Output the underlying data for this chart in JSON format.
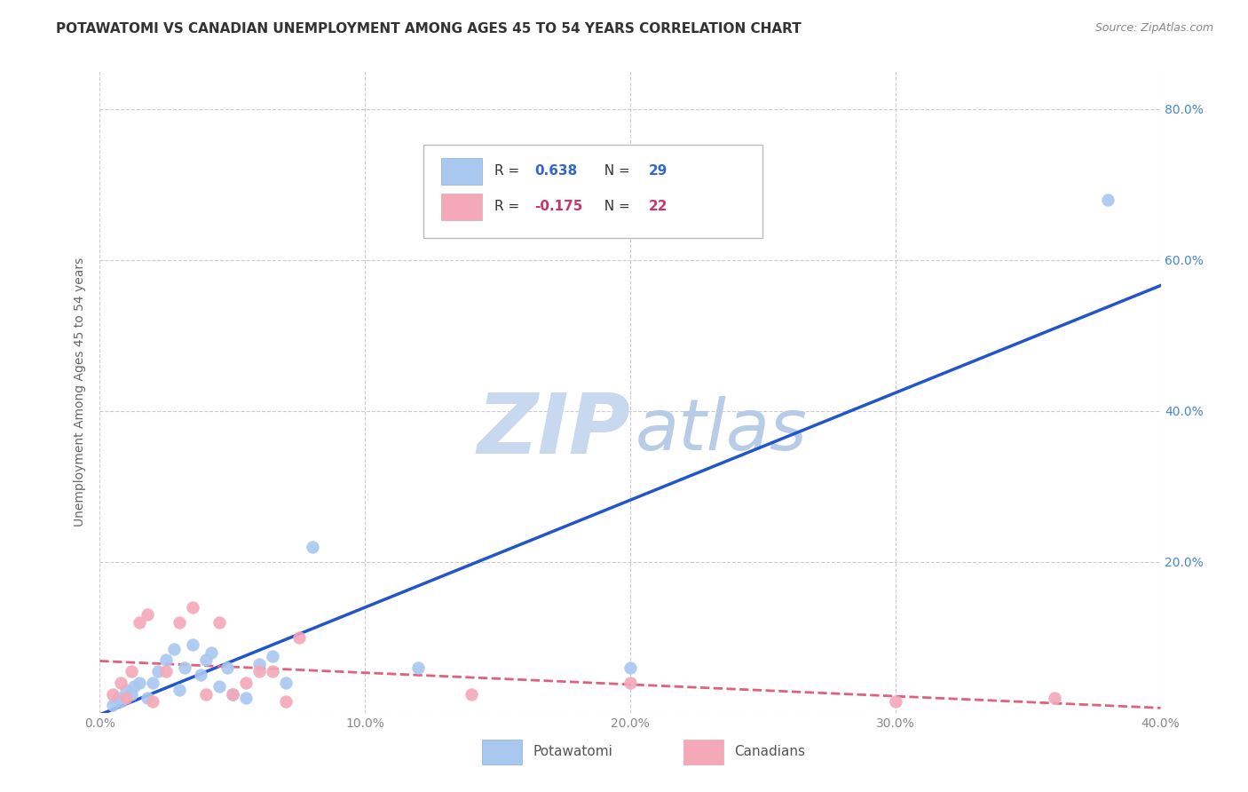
{
  "title": "POTAWATOMI VS CANADIAN UNEMPLOYMENT AMONG AGES 45 TO 54 YEARS CORRELATION CHART",
  "source": "Source: ZipAtlas.com",
  "ylabel": "Unemployment Among Ages 45 to 54 years",
  "xlim": [
    0.0,
    0.4
  ],
  "ylim": [
    0.0,
    0.85
  ],
  "xticks": [
    0.0,
    0.1,
    0.2,
    0.3,
    0.4
  ],
  "xticklabels": [
    "0.0%",
    "10.0%",
    "20.0%",
    "30.0%",
    "40.0%"
  ],
  "yticks": [
    0.0,
    0.2,
    0.4,
    0.6,
    0.8
  ],
  "right_yticklabels": [
    "",
    "20.0%",
    "40.0%",
    "60.0%",
    "80.0%"
  ],
  "potawatomi_R": 0.638,
  "potawatomi_N": 29,
  "canadians_R": -0.175,
  "canadians_N": 22,
  "potawatomi_color": "#a8c8f0",
  "canadians_color": "#f4a8b8",
  "trendline_potawatomi_color": "#2255cc",
  "trendline_canadians_color": "#e06080",
  "watermark_zip_color": "#c8d8ee",
  "watermark_atlas_color": "#b8cce8",
  "background_color": "#ffffff",
  "grid_color": "#cccccc",
  "potawatomi_x": [
    0.005,
    0.007,
    0.008,
    0.01,
    0.012,
    0.013,
    0.015,
    0.018,
    0.02,
    0.022,
    0.025,
    0.028,
    0.03,
    0.032,
    0.035,
    0.038,
    0.04,
    0.042,
    0.045,
    0.048,
    0.05,
    0.055,
    0.06,
    0.065,
    0.07,
    0.08,
    0.12,
    0.2,
    0.38
  ],
  "potawatomi_y": [
    0.01,
    0.02,
    0.015,
    0.03,
    0.025,
    0.035,
    0.04,
    0.02,
    0.04,
    0.055,
    0.07,
    0.085,
    0.03,
    0.06,
    0.09,
    0.05,
    0.07,
    0.08,
    0.035,
    0.06,
    0.025,
    0.02,
    0.065,
    0.075,
    0.04,
    0.22,
    0.06,
    0.06,
    0.68
  ],
  "canadians_x": [
    0.005,
    0.008,
    0.01,
    0.012,
    0.015,
    0.018,
    0.02,
    0.025,
    0.03,
    0.035,
    0.04,
    0.045,
    0.05,
    0.055,
    0.06,
    0.065,
    0.07,
    0.075,
    0.14,
    0.2,
    0.3,
    0.36
  ],
  "canadians_y": [
    0.025,
    0.04,
    0.02,
    0.055,
    0.12,
    0.13,
    0.015,
    0.055,
    0.12,
    0.14,
    0.025,
    0.12,
    0.025,
    0.04,
    0.055,
    0.055,
    0.015,
    0.1,
    0.025,
    0.04,
    0.015,
    0.02
  ],
  "title_fontsize": 11,
  "axis_label_fontsize": 10,
  "tick_fontsize": 10,
  "watermark_fontsize": 68
}
